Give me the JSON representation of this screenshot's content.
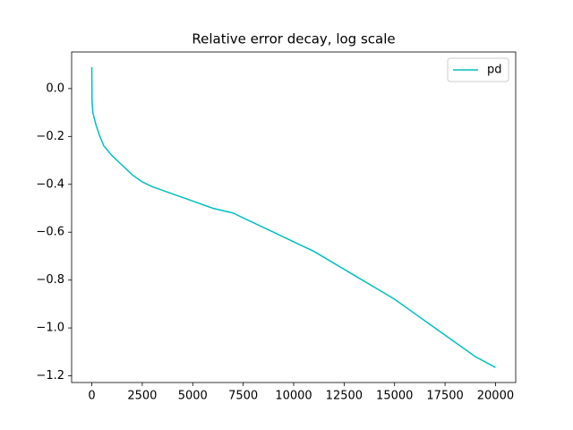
{
  "chart_data": {
    "type": "line",
    "title": "Relative error decay, log scale",
    "x": [
      0,
      10,
      50,
      200,
      400,
      600,
      1000,
      1500,
      2000,
      2500,
      3000,
      4000,
      5000,
      6000,
      7000,
      8000,
      9000,
      10000,
      11000,
      12000,
      13000,
      14000,
      15000,
      16000,
      17000,
      18000,
      19000,
      20000
    ],
    "series": [
      {
        "name": "pd",
        "color": "#00bfbf",
        "values": [
          0.09,
          -0.05,
          -0.1,
          -0.15,
          -0.2,
          -0.24,
          -0.28,
          -0.32,
          -0.36,
          -0.39,
          -0.41,
          -0.44,
          -0.47,
          -0.5,
          -0.52,
          -0.56,
          -0.6,
          -0.64,
          -0.68,
          -0.73,
          -0.78,
          -0.83,
          -0.88,
          -0.94,
          -1.0,
          -1.06,
          -1.12,
          -1.165
        ]
      }
    ],
    "xlim": [
      -1000,
      21000
    ],
    "ylim": [
      -1.228,
      0.153
    ],
    "xticks": [
      0,
      2500,
      5000,
      7500,
      10000,
      12500,
      15000,
      17500,
      20000
    ],
    "yticks": [
      {
        "value": -1.2,
        "label": "−1.2"
      },
      {
        "value": -1.0,
        "label": "−1.0"
      },
      {
        "value": -0.8,
        "label": "−0.8"
      },
      {
        "value": -0.6,
        "label": "−0.6"
      },
      {
        "value": -0.4,
        "label": "−0.4"
      },
      {
        "value": -0.2,
        "label": "−0.2"
      },
      {
        "value": 0.0,
        "label": "0.0"
      }
    ],
    "legend": "upper right",
    "grid": false
  }
}
